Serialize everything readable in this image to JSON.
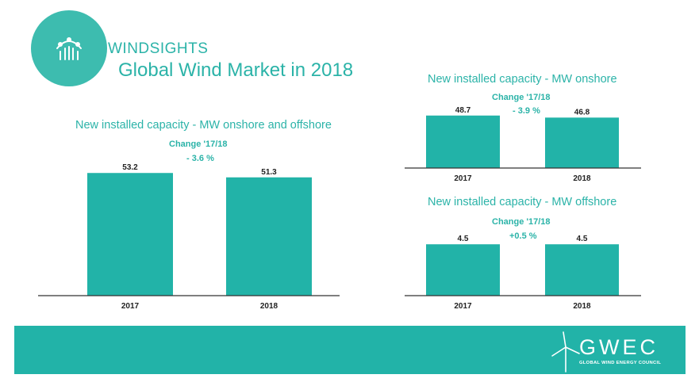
{
  "header": {
    "brand": "WINDSIGHTS",
    "title": "Global Wind Market in 2018",
    "logo_icon": "trend-line-bar-chart-icon"
  },
  "colors": {
    "accent": "#2bb3a8",
    "bar": "#22b3a8",
    "footer": "#22b3a8",
    "axis": "#333333"
  },
  "footer": {
    "logo_text": "GWEC",
    "logo_subtitle": "GLOBAL WIND ENERGY COUNCIL",
    "logo_icon": "wind-turbine-icon"
  },
  "chart_data": [
    {
      "type": "bar",
      "title": "New installed capacity - MW onshore and offshore",
      "annotation_title": "Change '17/18",
      "annotation_value": "- 3.6 %",
      "categories": [
        "2017",
        "2018"
      ],
      "values": [
        53.2,
        51.3
      ],
      "value_labels": [
        "53.2",
        "51.3"
      ],
      "ylim": [
        0,
        55
      ]
    },
    {
      "type": "bar",
      "title": "New installed capacity - MW onshore",
      "annotation_title": "Change '17/18",
      "annotation_value": "- 3.9 %",
      "categories": [
        "2017",
        "2018"
      ],
      "values": [
        48.7,
        46.8
      ],
      "value_labels": [
        "48.7",
        "46.8"
      ],
      "ylim": [
        0,
        50
      ]
    },
    {
      "type": "bar",
      "title": "New installed capacity - MW offshore",
      "annotation_title": "Change '17/18",
      "annotation_value": "+0.5 %",
      "categories": [
        "2017",
        "2018"
      ],
      "values": [
        4.5,
        4.5
      ],
      "value_labels": [
        "4.5",
        "4.5"
      ],
      "ylim": [
        0,
        5
      ]
    }
  ]
}
